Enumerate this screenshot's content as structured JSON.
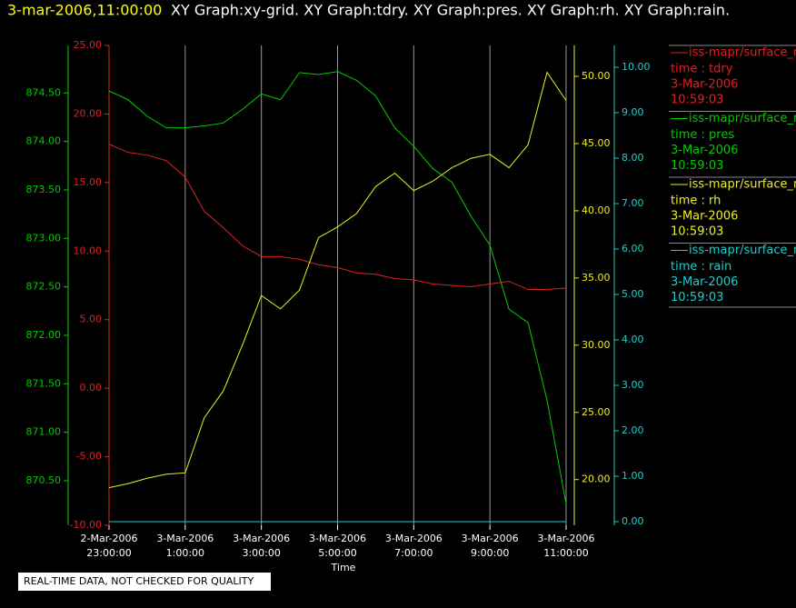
{
  "chart_data": {
    "type": "line",
    "title": "3-mar-2006,11:00:00",
    "subtitle": "XY Graph:xy-grid.  XY Graph:tdry.  XY Graph:pres.  XY Graph:rh.  XY Graph:rain.",
    "xlabel": "Time",
    "note": "REAL-TIME DATA, NOT CHECKED FOR QUALITY",
    "grid": true,
    "xlim": [
      0,
      12
    ],
    "xticks": [
      {
        "value": 0,
        "label": [
          "2-Mar-2006",
          "23:00:00"
        ]
      },
      {
        "value": 2,
        "label": [
          "3-Mar-2006",
          "1:00:00"
        ]
      },
      {
        "value": 4,
        "label": [
          "3-Mar-2006",
          "3:00:00"
        ]
      },
      {
        "value": 6,
        "label": [
          "3-Mar-2006",
          "5:00:00"
        ]
      },
      {
        "value": 8,
        "label": [
          "3-Mar-2006",
          "7:00:00"
        ]
      },
      {
        "value": 10,
        "label": [
          "3-Mar-2006",
          "9:00:00"
        ]
      },
      {
        "value": 12,
        "label": [
          "3-Mar-2006",
          "11:00:00"
        ]
      }
    ],
    "x": [
      0,
      0.5,
      1,
      1.5,
      2,
      2.5,
      3,
      3.5,
      4,
      4.5,
      5,
      5.5,
      6,
      6.5,
      7,
      7.5,
      8,
      8.5,
      9,
      9.5,
      10,
      10.5,
      11,
      11.5,
      12
    ],
    "axes": [
      {
        "color": "#00cc00",
        "ylim": [
          870.04,
          874.99
        ],
        "yticks": [
          {
            "value": 870.5,
            "label": "870.50"
          },
          {
            "value": 871,
            "label": "871.00"
          },
          {
            "value": 871.5,
            "label": "871.50"
          },
          {
            "value": 872,
            "label": "872.00"
          },
          {
            "value": 872.5,
            "label": "872.50"
          },
          {
            "value": 873,
            "label": "873.00"
          },
          {
            "value": 873.5,
            "label": "873.50"
          },
          {
            "value": 874,
            "label": "874.00"
          },
          {
            "value": 874.5,
            "label": "874.50"
          }
        ]
      },
      {
        "color": "#dd2222",
        "ylim": [
          -10,
          25
        ],
        "yticks": [
          {
            "value": -10,
            "label": "-10.00"
          },
          {
            "value": -5,
            "label": "-5.00"
          },
          {
            "value": 0,
            "label": "0.00"
          },
          {
            "value": 5,
            "label": "5.00"
          },
          {
            "value": 10,
            "label": "10.00"
          },
          {
            "value": 15,
            "label": "15.00"
          },
          {
            "value": 20,
            "label": "20.00"
          },
          {
            "value": 25,
            "label": "25.00"
          }
        ]
      },
      {
        "color": "#eeee22",
        "ylim": [
          16.6,
          52.3
        ],
        "yticks": [
          {
            "value": 20,
            "label": "20.00"
          },
          {
            "value": 25,
            "label": "25.00"
          },
          {
            "value": 30,
            "label": "30.00"
          },
          {
            "value": 35,
            "label": "35.00"
          },
          {
            "value": 40,
            "label": "40.00"
          },
          {
            "value": 45,
            "label": "45.00"
          },
          {
            "value": 50,
            "label": "50.00"
          }
        ]
      },
      {
        "color": "#22cccc",
        "ylim": [
          -0.08,
          10.48
        ],
        "yticks": [
          {
            "value": 0,
            "label": "0.00"
          },
          {
            "value": 1,
            "label": "1.00"
          },
          {
            "value": 2,
            "label": "2.00"
          },
          {
            "value": 3,
            "label": "3.00"
          },
          {
            "value": 4,
            "label": "4.00"
          },
          {
            "value": 5,
            "label": "5.00"
          },
          {
            "value": 6,
            "label": "6.00"
          },
          {
            "value": 7,
            "label": "7.00"
          },
          {
            "value": 8,
            "label": "8.00"
          },
          {
            "value": 9,
            "label": "9.00"
          },
          {
            "value": 10,
            "label": "10.00"
          }
        ]
      }
    ],
    "series": [
      {
        "name": "iss-mapr/surface_m",
        "legend_lines": [
          "time : tdry",
          "3-Mar-2006",
          "10:59:03"
        ],
        "color": "#dd2222",
        "axis": 1,
        "values": [
          17.8,
          17.2,
          17.0,
          16.6,
          15.4,
          12.9,
          11.7,
          10.4,
          9.6,
          9.6,
          9.4,
          9.0,
          8.8,
          8.4,
          8.3,
          8.0,
          7.9,
          7.6,
          7.5,
          7.4,
          7.6,
          7.8,
          7.2,
          7.2,
          7.3
        ]
      },
      {
        "name": "iss-mapr/surface_m",
        "legend_lines": [
          "time : pres",
          "3-Mar-2006",
          "10:59:03"
        ],
        "color": "#00cc00",
        "axis": 0,
        "values": [
          874.52,
          874.43,
          874.26,
          874.14,
          874.14,
          874.16,
          874.19,
          874.33,
          874.49,
          874.43,
          874.71,
          874.69,
          874.72,
          874.63,
          874.47,
          874.14,
          873.95,
          873.72,
          873.58,
          873.23,
          872.93,
          872.27,
          872.13,
          871.33,
          870.26
        ]
      },
      {
        "name": "iss-mapr/surface_m",
        "legend_lines": [
          "time : rh",
          "3-Mar-2006",
          "10:59:03"
        ],
        "color": "#eeee22",
        "axis": 2,
        "values": [
          19.4,
          19.7,
          20.1,
          20.4,
          20.5,
          24.6,
          26.6,
          30.0,
          33.7,
          32.7,
          34.1,
          38.0,
          38.8,
          39.8,
          41.8,
          42.8,
          41.5,
          42.2,
          43.2,
          43.9,
          44.2,
          43.2,
          44.9,
          50.3,
          48.2
        ]
      },
      {
        "name": "iss-mapr/surface_m",
        "legend_lines": [
          "time : rain",
          "3-Mar-2006",
          "10:59:03"
        ],
        "color": "#22cccc",
        "axis": 3,
        "values": [
          0,
          0,
          0,
          0,
          0,
          0,
          0,
          0,
          0,
          0,
          0,
          0,
          0,
          0,
          0,
          0,
          0,
          0,
          0,
          0,
          0,
          0,
          0,
          0,
          0
        ]
      }
    ]
  }
}
